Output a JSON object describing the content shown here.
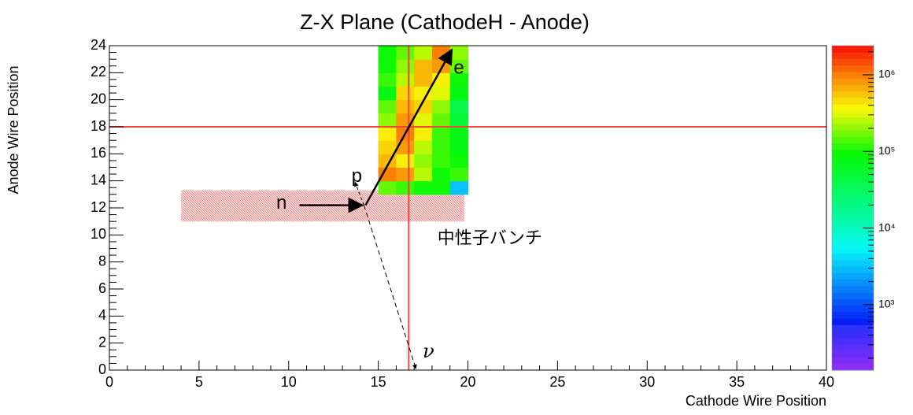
{
  "chart_data": {
    "type": "heatmap",
    "title": "Z-X Plane (CathodeH - Anode)",
    "x_label": "Cathode Wire Position",
    "y_label": "Anode Wire Position",
    "xlim": [
      0,
      40
    ],
    "ylim": [
      0,
      24
    ],
    "xticks": [
      0,
      5,
      10,
      15,
      20,
      25,
      30,
      35,
      40
    ],
    "yticks": [
      0,
      2,
      4,
      6,
      8,
      10,
      12,
      14,
      16,
      18,
      20,
      22,
      24
    ],
    "x_bins": [
      15,
      16,
      17,
      18,
      19,
      20
    ],
    "y_bins": [
      13,
      14,
      15,
      16,
      17,
      18,
      19,
      20,
      21,
      22,
      23,
      24
    ],
    "z": [
      [
        158000,
        126000,
        100000,
        100000,
        3200
      ],
      [
        1000000,
        794000,
        251000,
        100000,
        126000
      ],
      [
        631000,
        398000,
        200000,
        126000,
        100000
      ],
      [
        501000,
        794000,
        251000,
        126000,
        79000
      ],
      [
        398000,
        1000000,
        398000,
        126000,
        79000
      ],
      [
        200000,
        794000,
        316000,
        158000,
        50000
      ],
      [
        158000,
        631000,
        501000,
        200000,
        40000
      ],
      [
        79000,
        501000,
        398000,
        316000,
        79000
      ],
      [
        126000,
        251000,
        631000,
        398000,
        100000
      ],
      [
        100000,
        200000,
        631000,
        794000,
        158000
      ],
      [
        100000,
        158000,
        251000,
        1000000,
        200000
      ]
    ],
    "zlim": [
      140,
      2400000
    ],
    "zscale": "log",
    "zticks": [
      {
        "value": 1000,
        "label": "10³"
      },
      {
        "value": 10000,
        "label": "10⁴"
      },
      {
        "value": 100000,
        "label": "10⁵"
      },
      {
        "value": 1000000,
        "label": "10⁶"
      }
    ],
    "hline": 18,
    "vline": 16.7,
    "line_color": "#f0463c",
    "band": {
      "xlim": [
        4,
        19.8
      ],
      "ylim": [
        11,
        13.3
      ]
    },
    "annotations": {
      "n": "n",
      "p": "p",
      "e": "e",
      "nu": "ν",
      "bunch": "中性子バンチ"
    }
  }
}
